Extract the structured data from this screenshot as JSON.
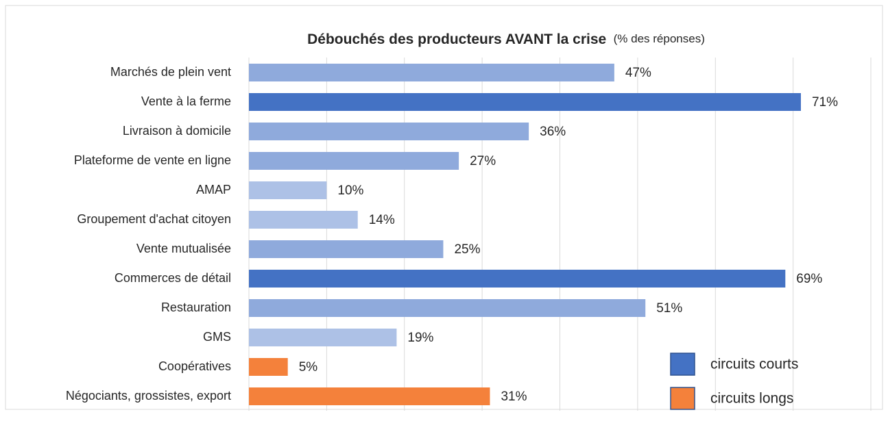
{
  "chart_data": {
    "type": "bar",
    "orientation": "horizontal",
    "title": "Débouchés des producteurs AVANT la crise",
    "subtitle": "(% des réponses)",
    "categories": [
      "Marchés de plein vent",
      "Vente à la ferme",
      "Livraison à domicile",
      "Plateforme de vente en ligne",
      "AMAP",
      "Groupement d'achat citoyen",
      "Vente mutualisée",
      "Commerces de détail",
      "Restauration",
      "GMS",
      "Coopératives",
      "Négociants, grossistes, export"
    ],
    "values": [
      47,
      71,
      36,
      27,
      10,
      14,
      25,
      69,
      51,
      19,
      5,
      31
    ],
    "value_labels": [
      "47%",
      "71%",
      "36%",
      "27%",
      "10%",
      "14%",
      "25%",
      "69%",
      "51%",
      "19%",
      "5%",
      "31%"
    ],
    "colors": [
      "#8faadc",
      "#4472c4",
      "#8faadc",
      "#8faadc",
      "#adc1e6",
      "#adc1e6",
      "#8faadc",
      "#4472c4",
      "#8faadc",
      "#adc1e6",
      "#f4813b",
      "#f4813b"
    ],
    "xlim": [
      0,
      80
    ],
    "xticks": [
      0,
      10,
      20,
      30,
      40,
      50,
      60,
      70,
      80
    ],
    "grid": true,
    "legend_position": "lower right",
    "legend": [
      {
        "name": "circuits courts",
        "color": "#4472c4"
      },
      {
        "name": "circuits longs",
        "color": "#f4813b"
      }
    ]
  }
}
